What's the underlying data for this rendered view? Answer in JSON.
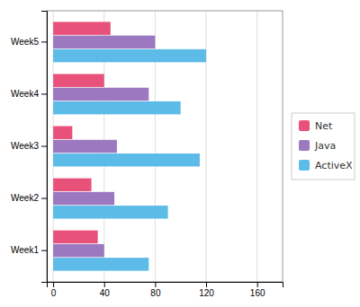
{
  "chart_data": {
    "type": "bar",
    "orientation": "horizontal",
    "categories": [
      "Week1",
      "Week2",
      "Week3",
      "Week4",
      "Week5"
    ],
    "series": [
      {
        "name": "ActiveX",
        "color": "#5DBBE8",
        "values": [
          75,
          90,
          115,
          100,
          120
        ]
      },
      {
        "name": "Java",
        "color": "#9B78C0",
        "values": [
          40,
          48,
          50,
          75,
          80
        ]
      },
      {
        "name": "Net",
        "color": "#E8527A",
        "values": [
          35,
          30,
          15,
          40,
          45
        ]
      }
    ],
    "xlim": [
      -5,
      180
    ],
    "xticks": [
      0,
      40,
      80,
      120,
      160
    ],
    "grid": true,
    "legend": "right"
  }
}
